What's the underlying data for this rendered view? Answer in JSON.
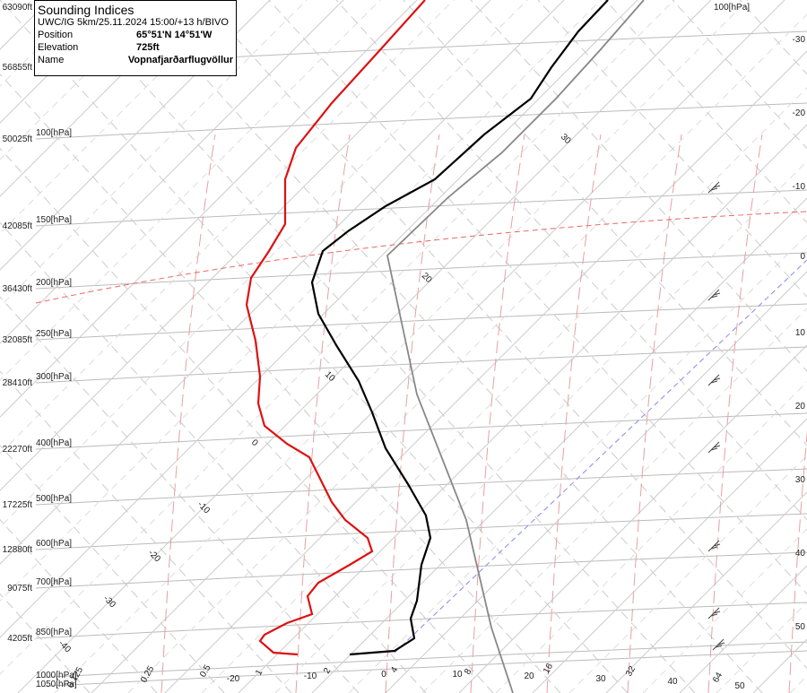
{
  "info": {
    "title": "Sounding Indices",
    "run": "UWC/IG 5km/25.11.2024 15:00/+13 h/BIVO",
    "rows": [
      {
        "label": "Position",
        "value": "65°51'N 14°51'W"
      },
      {
        "label": "Elevation",
        "value": "725ft"
      },
      {
        "label": "Name",
        "value": "Vopnafjarðarflugvöllur"
      }
    ]
  },
  "left_axis": [
    {
      "altitude": "63090ft",
      "pressure": "[hPa]"
    },
    {
      "altitude": "56855ft"
    },
    {
      "altitude": "50025ft",
      "pressure": "100[hPa]"
    },
    {
      "altitude": "42085ft",
      "pressure": "150[hPa]"
    },
    {
      "altitude": "36430ft",
      "pressure": "200[hPa]"
    },
    {
      "altitude": "32085ft",
      "pressure": "250[hPa]"
    },
    {
      "altitude": "28410ft",
      "pressure": "300[hPa]"
    },
    {
      "altitude": "22270ft",
      "pressure": "400[hPa]"
    },
    {
      "altitude": "17225ft",
      "pressure": "500[hPa]"
    },
    {
      "altitude": "12880ft",
      "pressure": "600[hPa]"
    },
    {
      "altitude": "9075ft",
      "pressure": "700[hPa]"
    },
    {
      "altitude": "4205ft",
      "pressure": "850[hPa]"
    },
    {
      "pressure": "1000[hPa]"
    },
    {
      "pressure": "1050[hPa]"
    }
  ],
  "top_right": "100[hPa]",
  "right_axis": [
    "-30",
    "-20",
    "-10",
    "0",
    "10",
    "20",
    "30",
    "40",
    "50"
  ],
  "isotherm_labels": [
    "30",
    "20",
    "10",
    "0",
    "-10",
    "-20",
    "-30",
    "-40"
  ],
  "bottom_temperature": [
    "-20",
    "-10",
    "0",
    "10",
    "20",
    "30",
    "40",
    "50"
  ],
  "mixing_ratio": [
    "0.125",
    "0.25",
    "0.5",
    "1",
    "2",
    "4",
    "8",
    "16",
    "32",
    "64"
  ]
}
